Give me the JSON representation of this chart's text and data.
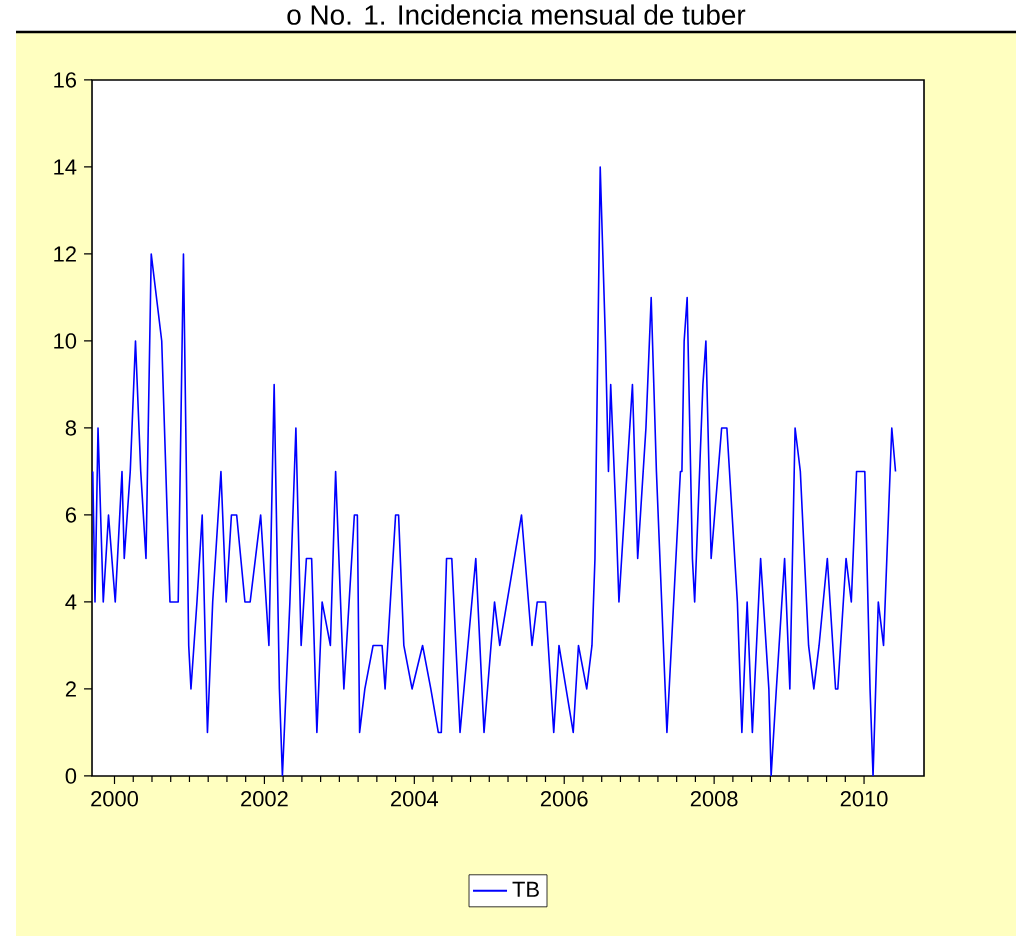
{
  "chart_data": {
    "type": "line",
    "title": "o No. 1. Incidencia  mensual de tuber",
    "x": [
      1999.71,
      1999.74,
      1999.78,
      1999.85,
      1999.92,
      2000.01,
      2000.1,
      2000.13,
      2000.21,
      2000.28,
      2000.35,
      2000.42,
      2000.49,
      2000.56,
      2000.63,
      2000.74,
      2000.85,
      2000.92,
      2000.99,
      2001.02,
      2001.1,
      2001.17,
      2001.24,
      2001.31,
      2001.42,
      2001.49,
      2001.56,
      2001.63,
      2001.74,
      2001.81,
      2001.95,
      2002.06,
      2002.13,
      2002.2,
      2002.24,
      2002.34,
      2002.42,
      2002.49,
      2002.56,
      2002.63,
      2002.7,
      2002.77,
      2002.88,
      2002.95,
      2003.06,
      2003.2,
      2003.24,
      2003.27,
      2003.34,
      2003.45,
      2003.57,
      2003.61,
      2003.75,
      2003.79,
      2003.86,
      2003.97,
      2004.11,
      2004.22,
      2004.32,
      2004.36,
      2004.43,
      2004.5,
      2004.61,
      2004.82,
      2004.93,
      2005.07,
      2005.14,
      2005.43,
      2005.57,
      2005.64,
      2005.75,
      2005.86,
      2005.93,
      2006.12,
      2006.19,
      2006.3,
      2006.37,
      2006.41,
      2006.48,
      2006.55,
      2006.59,
      2006.62,
      2006.69,
      2006.73,
      2006.91,
      2006.98,
      2007.09,
      2007.16,
      2007.23,
      2007.3,
      2007.37,
      2007.55,
      2007.57,
      2007.6,
      2007.64,
      2007.71,
      2007.74,
      2007.85,
      2007.89,
      2007.96,
      2008.1,
      2008.17,
      2008.31,
      2008.37,
      2008.44,
      2008.51,
      2008.62,
      2008.73,
      2008.76,
      2008.83,
      2008.94,
      2009.01,
      2009.08,
      2009.15,
      2009.26,
      2009.33,
      2009.4,
      2009.51,
      2009.62,
      2009.65,
      2009.76,
      2009.83,
      2009.9,
      2010.01,
      2010.08,
      2010.12,
      2010.19,
      2010.26,
      2010.37,
      2010.42
    ],
    "series": [
      {
        "name": "TB",
        "color": "#0000ff",
        "values": [
          7,
          4,
          8,
          4,
          6,
          4,
          7,
          5,
          7,
          10,
          7,
          5,
          12,
          11,
          10,
          4,
          4,
          12,
          3,
          2,
          4,
          6,
          1,
          4,
          7,
          4,
          6,
          6,
          4,
          4,
          6,
          3,
          9,
          2,
          0,
          4,
          8,
          3,
          5,
          5,
          1,
          4,
          3,
          7,
          2,
          6,
          6,
          1,
          2,
          3,
          3,
          2,
          6,
          6,
          3,
          2,
          3,
          2,
          1,
          1,
          5,
          5,
          1,
          5,
          1,
          4,
          3,
          6,
          3,
          4,
          4,
          1,
          3,
          1,
          3,
          2,
          3,
          5,
          14,
          10,
          7,
          9,
          6,
          4,
          9,
          5,
          8,
          11,
          7,
          4,
          1,
          7,
          7,
          10,
          11,
          5,
          4,
          9,
          10,
          5,
          8,
          8,
          4,
          1,
          4,
          1,
          5,
          2,
          0,
          2,
          5,
          2,
          8,
          7,
          3,
          2,
          3,
          5,
          2,
          2,
          5,
          4,
          7,
          7,
          2,
          0,
          4,
          3,
          8,
          7
        ]
      }
    ],
    "xlim": [
      1999.7,
      2010.8
    ],
    "xticks": [
      2000,
      2002,
      2004,
      2006,
      2008,
      2010
    ],
    "ylim": [
      0,
      16
    ],
    "yticks": [
      0,
      2,
      4,
      6,
      8,
      10,
      12,
      14,
      16
    ],
    "legend": "bottom",
    "line_style": "solid"
  }
}
